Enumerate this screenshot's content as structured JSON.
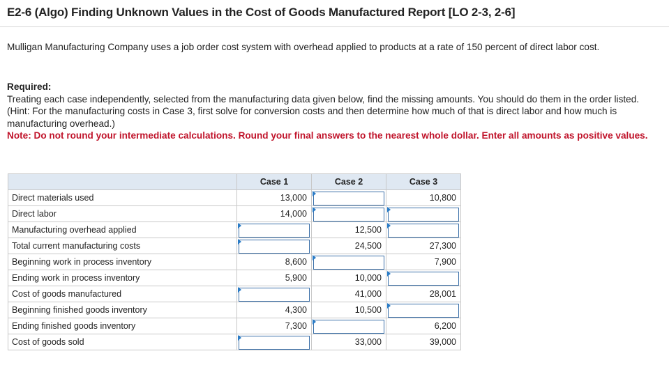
{
  "title": "E2-6 (Algo) Finding Unknown Values in the Cost of Goods Manufactured Report [LO 2-3, 2-6]",
  "intro": "Mulligan Manufacturing Company uses a job order cost system with overhead applied to products at a rate of 150 percent of direct labor cost.",
  "required_heading": "Required:",
  "required_text": "Treating each case independently, selected from the manufacturing data given below, find the missing amounts. You should do them in the order listed. (Hint: For the manufacturing costs in Case 3, first solve for conversion costs and then determine how much of that is direct labor and how much is manufacturing overhead.)",
  "note": "Note: Do not round your intermediate calculations. Round your final answers to the nearest whole dollar. Enter all amounts as positive values.",
  "table": {
    "headers": [
      "",
      "Case 1",
      "Case 2",
      "Case 3"
    ],
    "rows": [
      {
        "label": "Direct materials used",
        "cells": [
          {
            "v": "13,000"
          },
          {
            "input": true
          },
          {
            "v": "10,800"
          }
        ]
      },
      {
        "label": "Direct labor",
        "cells": [
          {
            "v": "14,000"
          },
          {
            "input": true
          },
          {
            "input": true
          }
        ]
      },
      {
        "label": "Manufacturing overhead applied",
        "cells": [
          {
            "input": true
          },
          {
            "v": "12,500"
          },
          {
            "input": true
          }
        ]
      },
      {
        "label": "Total current manufacturing costs",
        "cells": [
          {
            "input": true
          },
          {
            "v": "24,500"
          },
          {
            "v": "27,300"
          }
        ]
      },
      {
        "label": "Beginning work in process inventory",
        "cells": [
          {
            "v": "8,600"
          },
          {
            "input": true
          },
          {
            "v": "7,900"
          }
        ]
      },
      {
        "label": "Ending work in process inventory",
        "cells": [
          {
            "v": "5,900"
          },
          {
            "v": "10,000"
          },
          {
            "input": true
          }
        ]
      },
      {
        "label": "Cost of goods manufactured",
        "cells": [
          {
            "input": true
          },
          {
            "v": "41,000"
          },
          {
            "v": "28,001"
          }
        ]
      },
      {
        "label": "Beginning finished goods inventory",
        "cells": [
          {
            "v": "4,300"
          },
          {
            "v": "10,500"
          },
          {
            "input": true
          }
        ]
      },
      {
        "label": "Ending finished goods inventory",
        "cells": [
          {
            "v": "7,300"
          },
          {
            "input": true
          },
          {
            "v": "6,200"
          }
        ]
      },
      {
        "label": "Cost of goods sold",
        "cells": [
          {
            "input": true
          },
          {
            "v": "33,000"
          },
          {
            "v": "39,000"
          }
        ]
      }
    ]
  }
}
